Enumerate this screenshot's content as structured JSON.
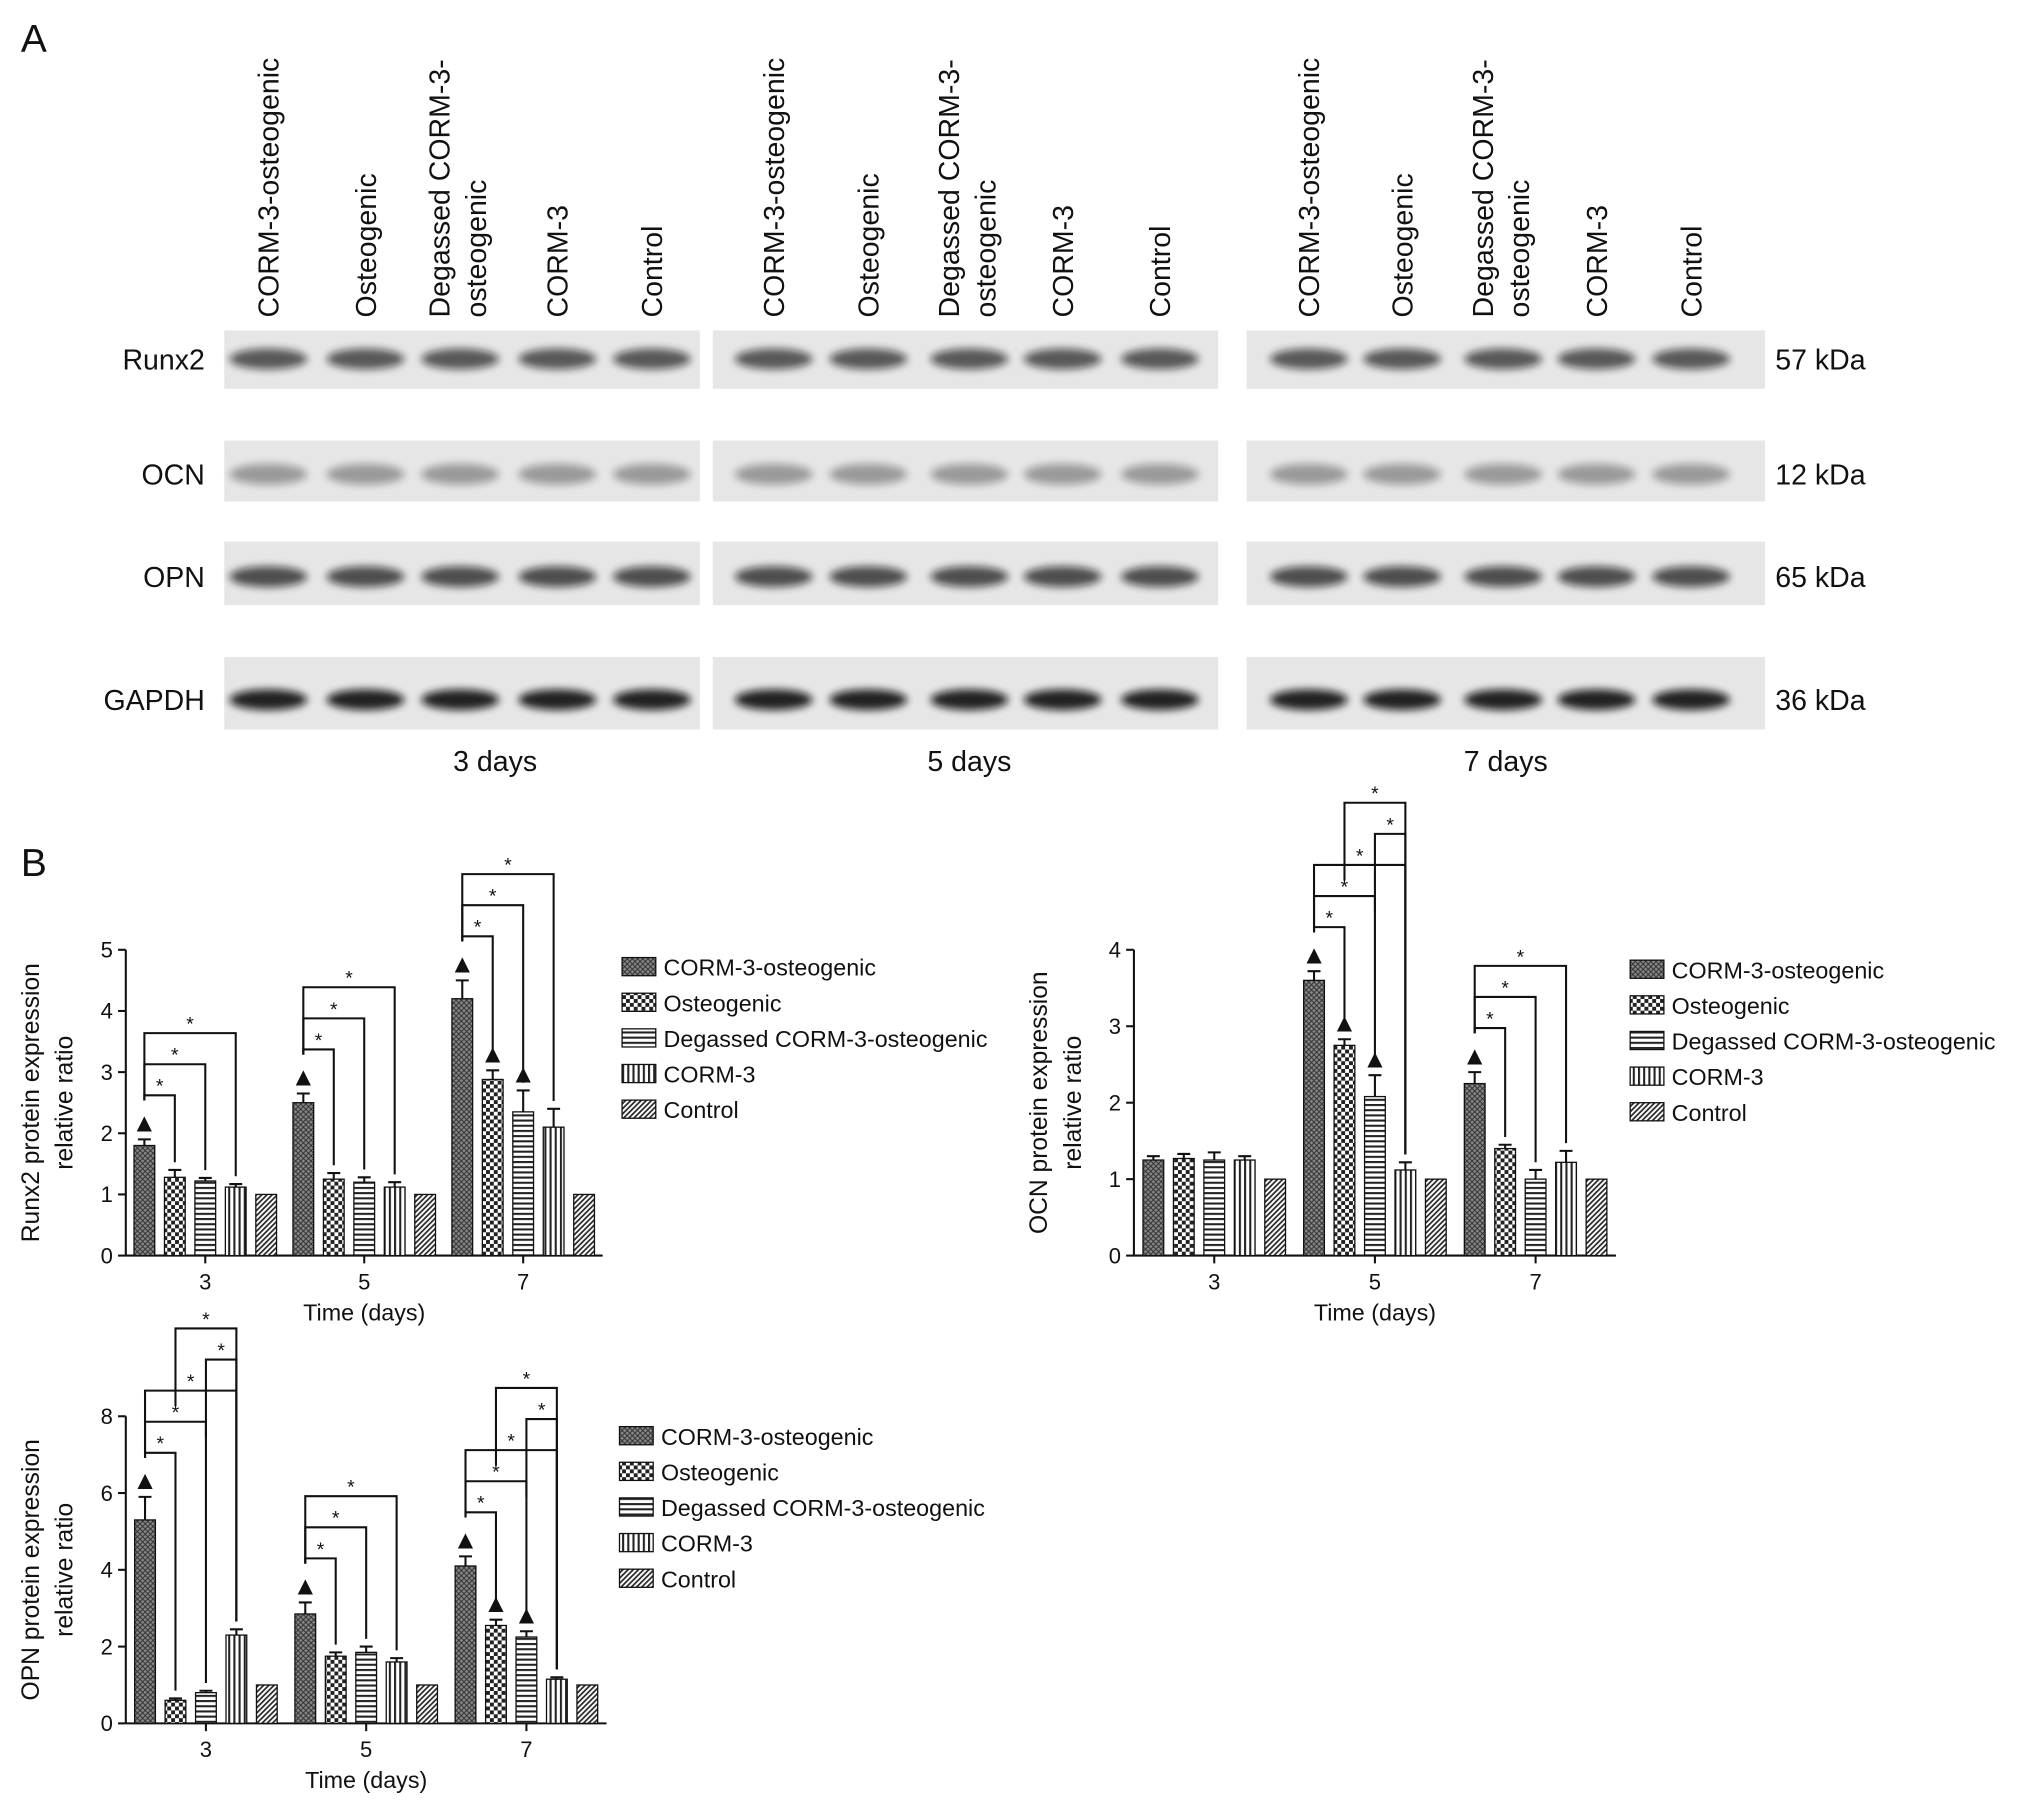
{
  "panel_a": {
    "label": "A",
    "lanes": [
      [
        "CORM-3-osteogenic"
      ],
      [
        "Osteogenic"
      ],
      [
        "Degassed CORM-3-",
        "osteogenic"
      ],
      [
        "CORM-3"
      ],
      [
        "Control"
      ]
    ],
    "proteins": [
      "Runx2",
      "OCN",
      "OPN",
      "GAPDH"
    ],
    "sizes": [
      "57 kDa",
      "12 kDa",
      "65 kDa",
      "36 kDa"
    ],
    "timepoints": [
      "3 days",
      "5 days",
      "7 days"
    ]
  },
  "panel_b_label": "B",
  "chart_data": [
    {
      "type": "bar",
      "ylabel": [
        "Runx2 protein expression",
        "relative ratio"
      ],
      "xlabel": "Time (days)",
      "categories": [
        "3",
        "5",
        "7"
      ],
      "ylim": [
        0,
        5
      ],
      "yticks": [
        0,
        1,
        2,
        3,
        4,
        5
      ],
      "series": [
        {
          "name": "CORM-3-osteogenic",
          "pattern": "crosshatch",
          "color": "#333333",
          "values": [
            1.8,
            2.5,
            4.2
          ],
          "errors": [
            0.1,
            0.15,
            0.3
          ]
        },
        {
          "name": "Osteogenic",
          "pattern": "checker",
          "color": "#222222",
          "values": [
            1.28,
            1.25,
            2.88
          ],
          "errors": [
            0.12,
            0.1,
            0.15
          ]
        },
        {
          "name": "Degassed CORM-3-osteogenic",
          "pattern": "horizontal",
          "color": "#222222",
          "values": [
            1.22,
            1.2,
            2.35
          ],
          "errors": [
            0.05,
            0.08,
            0.35
          ]
        },
        {
          "name": "CORM-3",
          "pattern": "vertical",
          "color": "#222222",
          "values": [
            1.12,
            1.12,
            2.1
          ],
          "errors": [
            0.05,
            0.08,
            0.3
          ]
        },
        {
          "name": "Control",
          "pattern": "diagonal",
          "color": "#222222",
          "values": [
            1,
            1,
            1
          ],
          "errors": [
            0,
            0,
            0
          ]
        }
      ],
      "significance": [
        {
          "group": "3",
          "pair": [
            "CORM-3-osteogenic",
            "Osteogenic"
          ],
          "label": "*"
        },
        {
          "group": "3",
          "pair": [
            "CORM-3-osteogenic",
            "Degassed CORM-3-osteogenic"
          ],
          "label": "*"
        },
        {
          "group": "3",
          "pair": [
            "CORM-3-osteogenic",
            "CORM-3"
          ],
          "label": "*"
        },
        {
          "group": "5",
          "pair": [
            "CORM-3-osteogenic",
            "Osteogenic"
          ],
          "label": "*"
        },
        {
          "group": "5",
          "pair": [
            "CORM-3-osteogenic",
            "Degassed CORM-3-osteogenic"
          ],
          "label": "*"
        },
        {
          "group": "5",
          "pair": [
            "CORM-3-osteogenic",
            "CORM-3"
          ],
          "label": "*"
        },
        {
          "group": "7",
          "pair": [
            "CORM-3-osteogenic",
            "Osteogenic"
          ],
          "label": "*"
        },
        {
          "group": "7",
          "pair": [
            "CORM-3-osteogenic",
            "Degassed CORM-3-osteogenic"
          ],
          "label": "*"
        },
        {
          "group": "7",
          "pair": [
            "CORM-3-osteogenic",
            "CORM-3"
          ],
          "label": "*"
        }
      ],
      "markers": [
        {
          "group": "3",
          "series": "CORM-3-osteogenic",
          "label": "▲"
        },
        {
          "group": "5",
          "series": "CORM-3-osteogenic",
          "label": "▲"
        },
        {
          "group": "7",
          "series": "CORM-3-osteogenic",
          "label": "▲"
        },
        {
          "group": "7",
          "series": "Osteogenic",
          "label": "▲"
        },
        {
          "group": "7",
          "series": "Degassed CORM-3-osteogenic",
          "label": "▲"
        }
      ]
    },
    {
      "type": "bar",
      "ylabel": [
        "OCN protein expression",
        "relative ratio"
      ],
      "xlabel": "Time (days)",
      "categories": [
        "3",
        "5",
        "7"
      ],
      "ylim": [
        0,
        4
      ],
      "yticks": [
        0,
        1,
        2,
        3,
        4
      ],
      "series": [
        {
          "name": "CORM-3-osteogenic",
          "pattern": "crosshatch",
          "color": "#333333",
          "values": [
            1.25,
            3.6,
            2.25
          ],
          "errors": [
            0.05,
            0.12,
            0.15
          ]
        },
        {
          "name": "Osteogenic",
          "pattern": "checker",
          "color": "#222222",
          "values": [
            1.27,
            2.75,
            1.4
          ],
          "errors": [
            0.06,
            0.08,
            0.05
          ]
        },
        {
          "name": "Degassed CORM-3-osteogenic",
          "pattern": "horizontal",
          "color": "#222222",
          "values": [
            1.25,
            2.08,
            1
          ],
          "errors": [
            0.1,
            0.28,
            0.12
          ]
        },
        {
          "name": "CORM-3",
          "pattern": "vertical",
          "color": "#222222",
          "values": [
            1.25,
            1.12,
            1.22
          ],
          "errors": [
            0.05,
            0.1,
            0.15
          ]
        },
        {
          "name": "Control",
          "pattern": "diagonal",
          "color": "#222222",
          "values": [
            1,
            1,
            1
          ],
          "errors": [
            0,
            0,
            0
          ]
        }
      ],
      "significance": [
        {
          "group": "5",
          "pair": [
            "CORM-3-osteogenic",
            "Osteogenic"
          ],
          "label": "*"
        },
        {
          "group": "5",
          "pair": [
            "CORM-3-osteogenic",
            "Degassed CORM-3-osteogenic"
          ],
          "label": "*"
        },
        {
          "group": "5",
          "pair": [
            "CORM-3-osteogenic",
            "CORM-3"
          ],
          "label": "*"
        },
        {
          "group": "5",
          "pair": [
            "Degassed CORM-3-osteogenic",
            "CORM-3"
          ],
          "label": "*"
        },
        {
          "group": "5",
          "pair": [
            "Osteogenic",
            "CORM-3"
          ],
          "label": "*"
        },
        {
          "group": "7",
          "pair": [
            "CORM-3-osteogenic",
            "Osteogenic"
          ],
          "label": "*"
        },
        {
          "group": "7",
          "pair": [
            "CORM-3-osteogenic",
            "Degassed CORM-3-osteogenic"
          ],
          "label": "*"
        },
        {
          "group": "7",
          "pair": [
            "CORM-3-osteogenic",
            "CORM-3"
          ],
          "label": "*"
        }
      ],
      "markers": [
        {
          "group": "5",
          "series": "CORM-3-osteogenic",
          "label": "▲"
        },
        {
          "group": "5",
          "series": "Osteogenic",
          "label": "▲"
        },
        {
          "group": "5",
          "series": "Degassed CORM-3-osteogenic",
          "label": "▲"
        },
        {
          "group": "7",
          "series": "CORM-3-osteogenic",
          "label": "▲"
        }
      ]
    },
    {
      "type": "bar",
      "ylabel": [
        "OPN protein expression",
        "relative ratio"
      ],
      "xlabel": "Time (days)",
      "categories": [
        "3",
        "5",
        "7"
      ],
      "ylim": [
        0,
        8
      ],
      "yticks": [
        0,
        2,
        4,
        6,
        8
      ],
      "series": [
        {
          "name": "CORM-3-osteogenic",
          "pattern": "crosshatch",
          "color": "#333333",
          "values": [
            5.3,
            2.85,
            4.1
          ],
          "errors": [
            0.6,
            0.3,
            0.25
          ]
        },
        {
          "name": "Osteogenic",
          "pattern": "checker",
          "color": "#222222",
          "values": [
            0.6,
            1.75,
            2.55
          ],
          "errors": [
            0.05,
            0.1,
            0.15
          ]
        },
        {
          "name": "Degassed CORM-3-osteogenic",
          "pattern": "horizontal",
          "color": "#222222",
          "values": [
            0.8,
            1.85,
            2.25
          ],
          "errors": [
            0.05,
            0.15,
            0.15
          ]
        },
        {
          "name": "CORM-3",
          "pattern": "vertical",
          "color": "#222222",
          "values": [
            2.3,
            1.6,
            1.15
          ],
          "errors": [
            0.15,
            0.1,
            0.05
          ]
        },
        {
          "name": "Control",
          "pattern": "diagonal",
          "color": "#222222",
          "values": [
            1,
            1,
            1
          ],
          "errors": [
            0,
            0,
            0
          ]
        }
      ],
      "significance": [
        {
          "group": "3",
          "pair": [
            "CORM-3-osteogenic",
            "Osteogenic"
          ],
          "label": "*"
        },
        {
          "group": "3",
          "pair": [
            "CORM-3-osteogenic",
            "Degassed CORM-3-osteogenic"
          ],
          "label": "*"
        },
        {
          "group": "3",
          "pair": [
            "CORM-3-osteogenic",
            "CORM-3"
          ],
          "label": "*"
        },
        {
          "group": "3",
          "pair": [
            "Degassed CORM-3-osteogenic",
            "CORM-3"
          ],
          "label": "*"
        },
        {
          "group": "3",
          "pair": [
            "Osteogenic",
            "CORM-3"
          ],
          "label": "*"
        },
        {
          "group": "5",
          "pair": [
            "CORM-3-osteogenic",
            "Osteogenic"
          ],
          "label": "*"
        },
        {
          "group": "5",
          "pair": [
            "CORM-3-osteogenic",
            "Degassed CORM-3-osteogenic"
          ],
          "label": "*"
        },
        {
          "group": "5",
          "pair": [
            "CORM-3-osteogenic",
            "CORM-3"
          ],
          "label": "*"
        },
        {
          "group": "7",
          "pair": [
            "CORM-3-osteogenic",
            "Osteogenic"
          ],
          "label": "*"
        },
        {
          "group": "7",
          "pair": [
            "CORM-3-osteogenic",
            "Degassed CORM-3-osteogenic"
          ],
          "label": "*"
        },
        {
          "group": "7",
          "pair": [
            "CORM-3-osteogenic",
            "CORM-3"
          ],
          "label": "*"
        },
        {
          "group": "7",
          "pair": [
            "Degassed CORM-3-osteogenic",
            "CORM-3"
          ],
          "label": "*"
        },
        {
          "group": "7",
          "pair": [
            "Osteogenic",
            "CORM-3"
          ],
          "label": "*"
        }
      ],
      "markers": [
        {
          "group": "3",
          "series": "CORM-3-osteogenic",
          "label": "▲"
        },
        {
          "group": "5",
          "series": "CORM-3-osteogenic",
          "label": "▲"
        },
        {
          "group": "7",
          "series": "CORM-3-osteogenic",
          "label": "▲"
        },
        {
          "group": "7",
          "series": "Osteogenic",
          "label": "▲"
        },
        {
          "group": "7",
          "series": "Degassed CORM-3-osteogenic",
          "label": "▲"
        }
      ]
    }
  ]
}
